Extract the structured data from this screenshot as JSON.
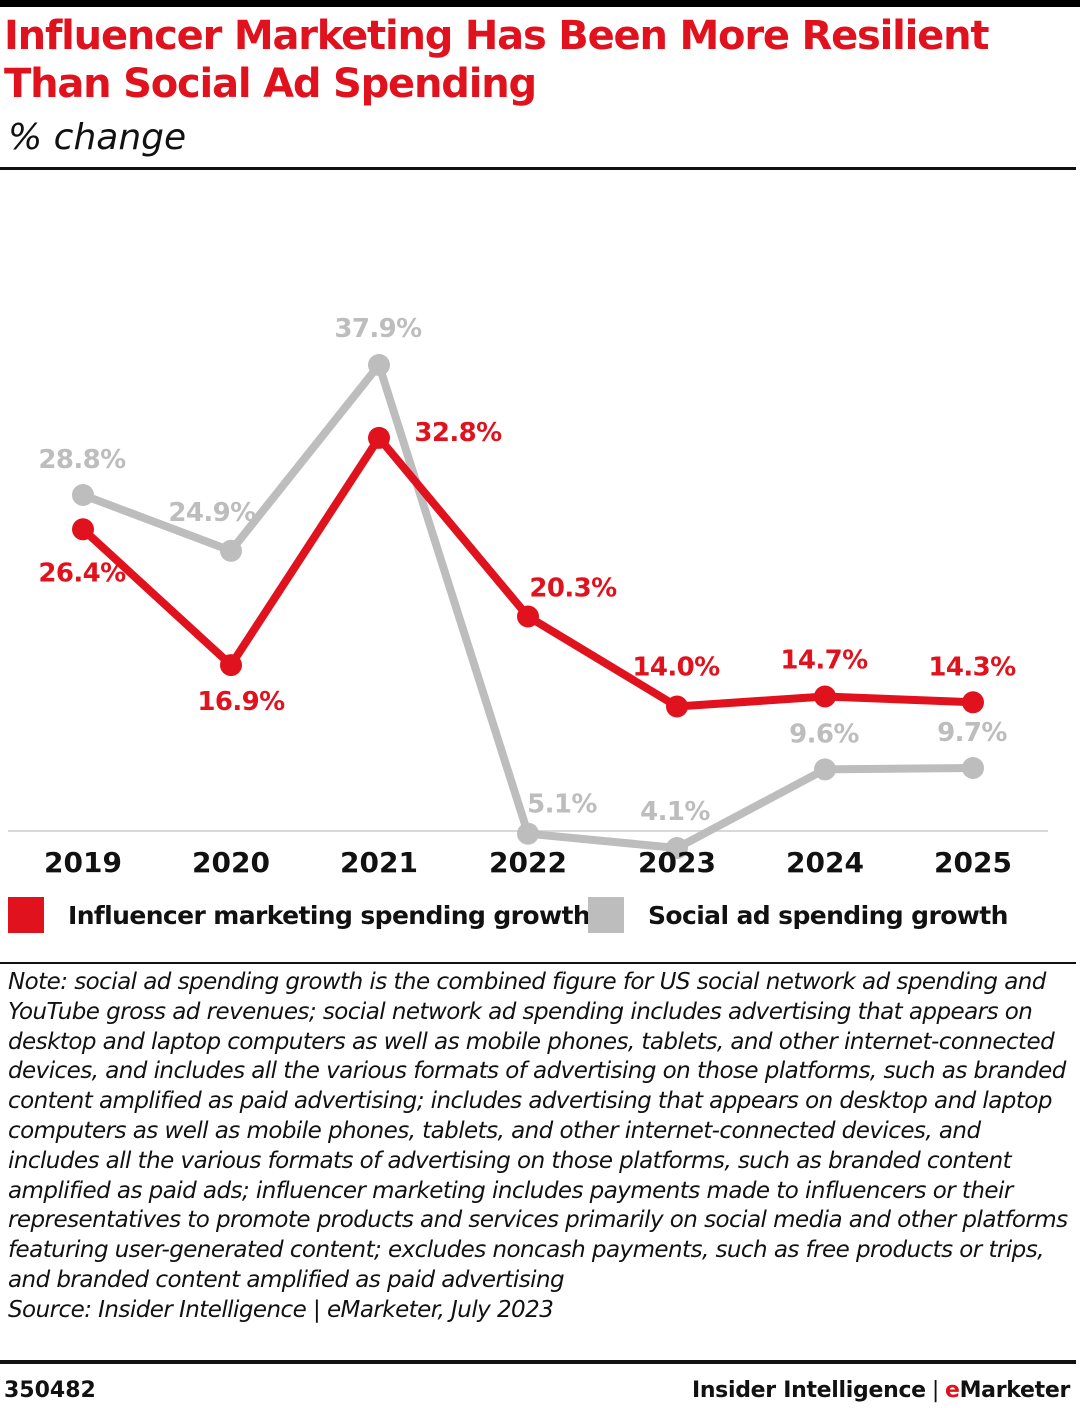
{
  "title": "Influencer Marketing Has Been More Resilient Than Social Ad Spending",
  "subtitle": "% change",
  "colors": {
    "influencer": "#e0121d",
    "social": "#bdbdbd",
    "axis": "#d9d9d9",
    "text": "#111111"
  },
  "chart_data": {
    "type": "line",
    "title": "Influencer Marketing Has Been More Resilient Than Social Ad Spending",
    "subtitle": "% change",
    "categories": [
      "2019",
      "2020",
      "2021",
      "2022",
      "2023",
      "2024",
      "2025"
    ],
    "ylim": [
      0,
      40
    ],
    "grid": false,
    "legend_position": "bottom",
    "series": [
      {
        "name": "Influencer marketing spending growth",
        "color": "#e0121d",
        "values": [
          26.4,
          16.9,
          32.8,
          20.3,
          14.0,
          14.7,
          14.3
        ],
        "labels": [
          "26.4%",
          "16.9%",
          "32.8%",
          "20.3%",
          "14.0%",
          "14.7%",
          "14.3%"
        ]
      },
      {
        "name": "Social ad spending growth",
        "color": "#bdbdbd",
        "values": [
          28.8,
          24.9,
          37.9,
          5.1,
          4.1,
          9.6,
          9.7
        ],
        "labels": [
          "28.8%",
          "24.9%",
          "37.9%",
          "5.1%",
          "4.1%",
          "9.6%",
          "9.7%"
        ]
      }
    ]
  },
  "legend": {
    "influencer": "Influencer marketing spending growth",
    "social": "Social ad spending growth"
  },
  "note": "Note: social ad spending growth is the combined figure for US social network ad spending and YouTube gross ad revenues; social network ad spending includes advertising that appears on desktop and laptop computers as well as mobile phones, tablets, and other internet-connected devices, and includes all the various formats of advertising on those platforms, such as branded content amplified as paid advertising; includes advertising that appears on desktop and laptop computers as well as mobile phones, tablets, and other internet-connected devices, and includes all the various formats of advertising on those platforms, such as branded content amplified as paid ads; influencer marketing includes payments made to influencers or their representatives to promote products and services primarily on social media and other platforms featuring user-generated content; excludes noncash payments, such as free products or trips, and branded content amplified as paid advertising",
  "source": "Source: Insider Intelligence | eMarketer, July 2023",
  "footer": {
    "chart_id": "350482",
    "brand_left": "Insider Intelligence",
    "brand_sep": "|",
    "brand_e": "e",
    "brand_rest": "Marketer"
  }
}
